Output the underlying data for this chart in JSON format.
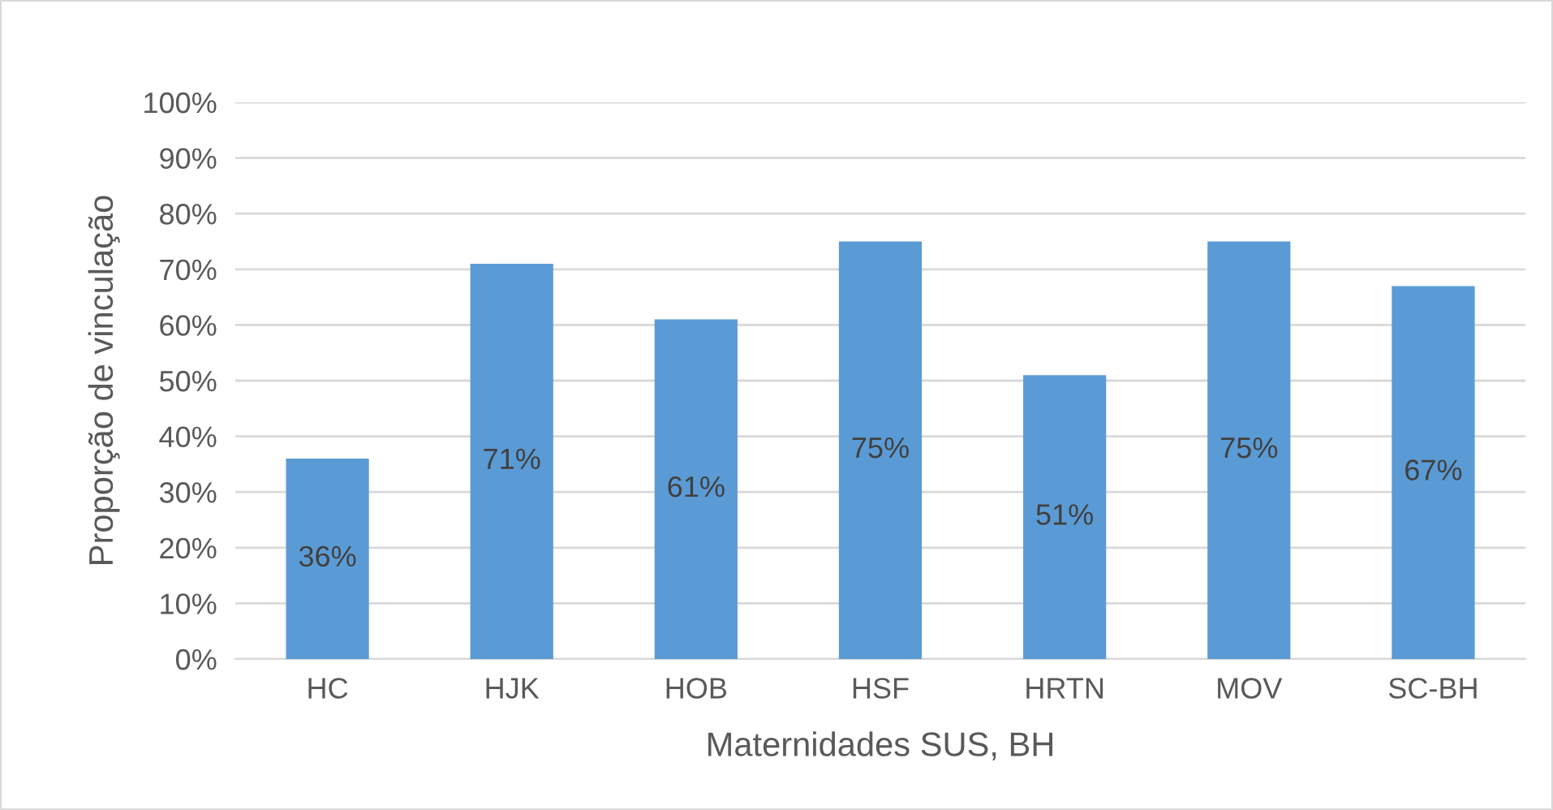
{
  "chart_data": {
    "type": "bar",
    "xlabel": "Maternidades SUS, BH",
    "ylabel": "Proporção de vinculação",
    "categories": [
      "HC",
      "HJK",
      "HOB",
      "HSF",
      "HRTN",
      "MOV",
      "SC-BH"
    ],
    "values": [
      36,
      71,
      61,
      75,
      51,
      75,
      67
    ],
    "value_labels": [
      "36%",
      "71%",
      "61%",
      "75%",
      "51%",
      "75%",
      "67%"
    ],
    "color": "#5b9bd5",
    "ylim": [
      0,
      100
    ],
    "yticks": [
      {
        "value": 0,
        "label": "0%"
      },
      {
        "value": 10,
        "label": "10%"
      },
      {
        "value": 20,
        "label": "20%"
      },
      {
        "value": 30,
        "label": "30%"
      },
      {
        "value": 40,
        "label": "40%"
      },
      {
        "value": 50,
        "label": "50%"
      },
      {
        "value": 60,
        "label": "60%"
      },
      {
        "value": 70,
        "label": "70%"
      },
      {
        "value": 80,
        "label": "80%"
      },
      {
        "value": 90,
        "label": "90%"
      },
      {
        "value": 100,
        "label": "100%"
      }
    ],
    "grid": "y"
  }
}
